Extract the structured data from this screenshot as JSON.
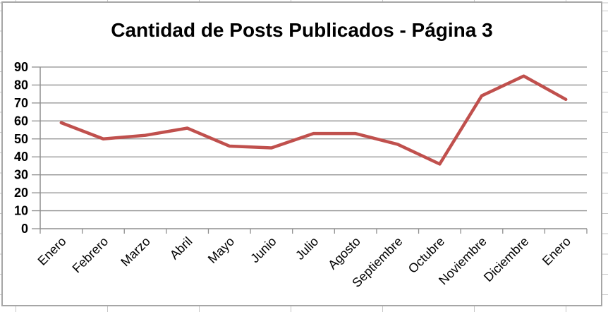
{
  "chart_data": {
    "type": "line",
    "title": "Cantidad de Posts Publicados - Página 3",
    "categories": [
      "Enero",
      "Febrero",
      "Marzo",
      "Abril",
      "Mayo",
      "Junio",
      "Julio",
      "Agosto",
      "Septiembre",
      "Octubre",
      "Noviembre",
      "Diciembre",
      "Enero"
    ],
    "values": [
      59,
      50,
      52,
      56,
      46,
      45,
      53,
      53,
      47,
      36,
      74,
      85,
      72
    ],
    "xlabel": "",
    "ylabel": "",
    "ylim": [
      0,
      90
    ],
    "yticks": [
      0,
      10,
      20,
      30,
      40,
      50,
      60,
      70,
      80,
      90
    ],
    "grid": "horizontal",
    "legend": "none",
    "line_color": "#C0504D"
  },
  "colors": {
    "accent_line": "#C0504D",
    "plot_grid": "#8f8f8f",
    "axis": "#8f8f8f",
    "chart_border": "#A6A6A6",
    "sheet_grid": "#C6C6C6",
    "text": "#000000",
    "background": "#FFFFFF"
  }
}
